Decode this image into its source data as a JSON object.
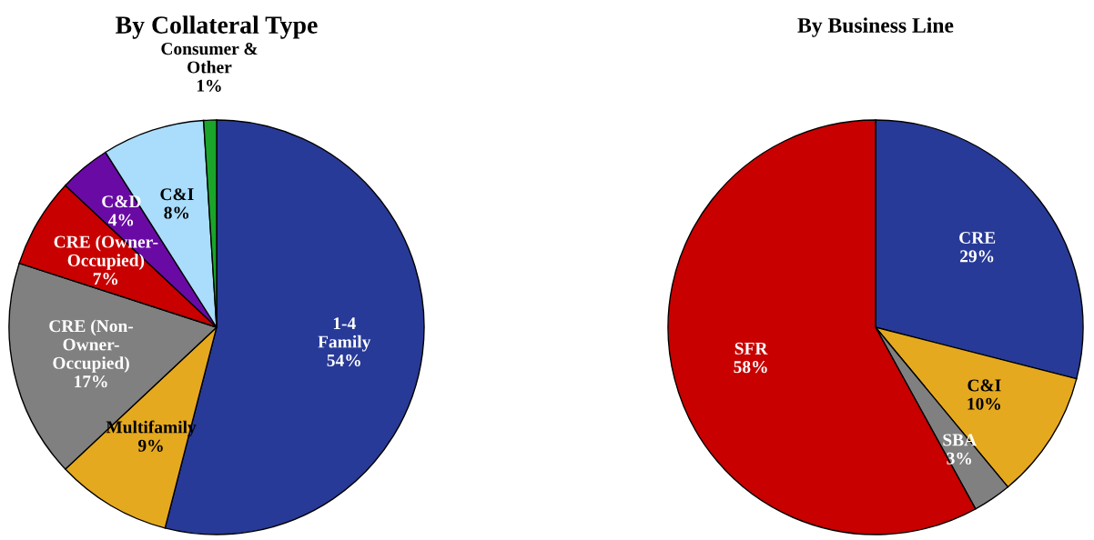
{
  "chart_data": [
    {
      "type": "pie",
      "title": "By Collateral Type",
      "categories": [
        "1-4\nFamily",
        "Multifamily",
        "CRE (Non-\nOwner-\nOccupied)",
        "CRE (Owner-\nOccupied)",
        "C&D",
        "C&I",
        "Consumer &\nOther"
      ],
      "values": [
        54,
        9,
        17,
        7,
        4,
        8,
        1
      ],
      "colors": [
        "#283a97",
        "#e5a91f",
        "#808080",
        "#c80000",
        "#6a0aa5",
        "#a9ddfb",
        "#1aa52a"
      ],
      "value_labels": [
        "54%",
        "9%",
        "17%",
        "7%",
        "4%",
        "8%",
        "1%"
      ],
      "legend": false
    },
    {
      "type": "pie",
      "title": "By Business Line",
      "categories": [
        "CRE",
        "C&I",
        "SBA",
        "SFR"
      ],
      "values": [
        29,
        10,
        3,
        58
      ],
      "colors": [
        "#283a97",
        "#e5a91f",
        "#808080",
        "#c80000"
      ],
      "value_labels": [
        "29%",
        "10%",
        "3%",
        "58%"
      ],
      "legend": false
    }
  ]
}
